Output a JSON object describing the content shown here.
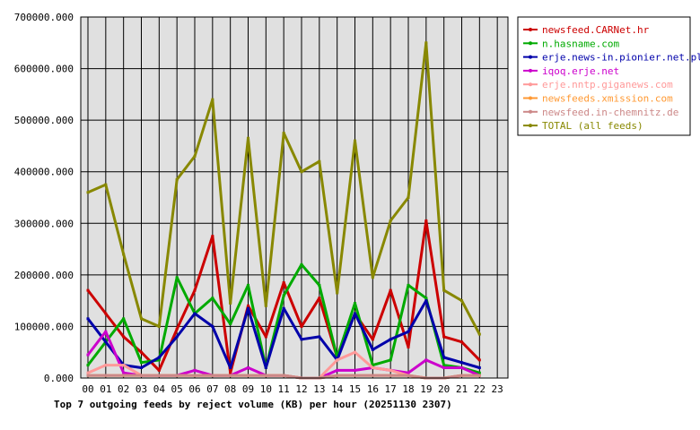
{
  "chart_data": {
    "type": "line",
    "title": "Top 7 outgoing feeds by reject volume (KB) per hour (20251130 2307)",
    "xlabel": "",
    "ylabel": "",
    "x": [
      "00",
      "01",
      "02",
      "03",
      "04",
      "05",
      "06",
      "07",
      "08",
      "09",
      "10",
      "11",
      "12",
      "13",
      "14",
      "15",
      "16",
      "17",
      "18",
      "19",
      "20",
      "21",
      "22",
      "23"
    ],
    "y_ticks": [
      "0.000",
      "100000.000",
      "200000.000",
      "300000.000",
      "400000.000",
      "500000.000",
      "600000.000",
      "700000.000"
    ],
    "ylim": [
      0,
      700000
    ],
    "grid": true,
    "legend_position": "right",
    "plot_background": "#e0e0e0",
    "series": [
      {
        "name": "newsfeed.CARNet.hr",
        "color": "#cc0000",
        "values": [
          170000,
          125000,
          80000,
          50000,
          15000,
          95000,
          170000,
          275000,
          10000,
          140000,
          80000,
          185000,
          100000,
          155000,
          40000,
          125000,
          75000,
          170000,
          60000,
          305000,
          80000,
          70000,
          35000,
          null
        ]
      },
      {
        "name": "n.hasname.com",
        "color": "#00aa00",
        "values": [
          25000,
          70000,
          115000,
          30000,
          35000,
          195000,
          125000,
          155000,
          105000,
          180000,
          20000,
          160000,
          220000,
          180000,
          40000,
          145000,
          25000,
          35000,
          180000,
          155000,
          25000,
          20000,
          10000,
          null
        ]
      },
      {
        "name": "erje.news-in.pionier.net.pl",
        "color": "#0000aa",
        "values": [
          115000,
          70000,
          25000,
          20000,
          40000,
          80000,
          125000,
          100000,
          20000,
          135000,
          20000,
          135000,
          75000,
          80000,
          35000,
          125000,
          55000,
          75000,
          90000,
          150000,
          40000,
          30000,
          20000,
          null
        ]
      },
      {
        "name": "iqoq.erje.net",
        "color": "#cc00cc",
        "values": [
          45000,
          90000,
          10000,
          5000,
          5000,
          5000,
          15000,
          5000,
          5000,
          20000,
          5000,
          5000,
          0,
          0,
          15000,
          15000,
          20000,
          15000,
          10000,
          35000,
          20000,
          20000,
          5000,
          null
        ]
      },
      {
        "name": "erje.nntp.giganews.com",
        "color": "#ff9999",
        "values": [
          10000,
          25000,
          25000,
          5000,
          5000,
          5000,
          5000,
          5000,
          5000,
          5000,
          5000,
          5000,
          0,
          0,
          35000,
          50000,
          20000,
          15000,
          5000,
          0,
          0,
          5000,
          5000,
          null
        ]
      },
      {
        "name": "newsfeeds.xmission.com",
        "color": "#ff9933",
        "values": [
          5000,
          5000,
          5000,
          5000,
          5000,
          5000,
          5000,
          5000,
          5000,
          5000,
          5000,
          5000,
          0,
          0,
          5000,
          5000,
          5000,
          5000,
          5000,
          0,
          0,
          5000,
          5000,
          null
        ]
      },
      {
        "name": "newsfeed.in-chemnitz.de",
        "color": "#cc8888",
        "values": [
          5000,
          5000,
          5000,
          5000,
          5000,
          5000,
          5000,
          5000,
          5000,
          5000,
          5000,
          5000,
          0,
          0,
          5000,
          5000,
          5000,
          5000,
          5000,
          0,
          0,
          5000,
          5000,
          null
        ]
      },
      {
        "name": "TOTAL (all feeds)",
        "color": "#888800",
        "values": [
          360000,
          375000,
          240000,
          115000,
          100000,
          385000,
          430000,
          540000,
          145000,
          465000,
          140000,
          475000,
          400000,
          420000,
          165000,
          460000,
          195000,
          305000,
          350000,
          650000,
          170000,
          150000,
          85000,
          null
        ]
      }
    ]
  }
}
